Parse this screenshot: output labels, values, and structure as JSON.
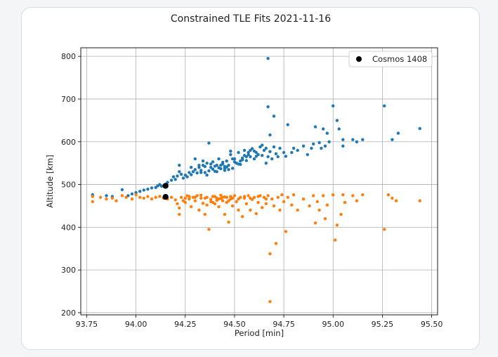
{
  "chart_data": {
    "type": "scatter",
    "title": "Constrained TLE Fits 2021-11-16",
    "xlabel": "Period [min]",
    "ylabel": "Altitude [km]",
    "xlim": [
      93.72,
      95.53
    ],
    "ylim": [
      195,
      820
    ],
    "xticks": [
      "93.75",
      "94.00",
      "94.25",
      "94.50",
      "94.75",
      "95.00",
      "95.25",
      "95.50"
    ],
    "yticks": [
      "200",
      "300",
      "400",
      "500",
      "600",
      "700",
      "800"
    ],
    "grid": true,
    "legend_placement": "top-right",
    "legend": [
      {
        "label": "Cosmos 1408",
        "color": "#000000"
      }
    ],
    "series": [
      {
        "color": "#1f77b4",
        "points": [
          [
            93.78,
            476
          ],
          [
            93.85,
            474
          ],
          [
            93.88,
            472
          ],
          [
            93.93,
            488
          ],
          [
            93.96,
            474
          ],
          [
            93.98,
            478
          ],
          [
            94.0,
            481
          ],
          [
            94.02,
            484
          ],
          [
            94.04,
            487
          ],
          [
            94.06,
            489
          ],
          [
            94.08,
            492
          ],
          [
            94.1,
            493
          ],
          [
            94.11,
            497
          ],
          [
            94.12,
            500
          ],
          [
            94.13,
            496
          ],
          [
            94.15,
            498
          ],
          [
            94.16,
            505
          ],
          [
            94.18,
            510
          ],
          [
            94.19,
            518
          ],
          [
            94.2,
            512
          ],
          [
            94.21,
            520
          ],
          [
            94.22,
            530
          ],
          [
            94.22,
            545
          ],
          [
            94.23,
            524
          ],
          [
            94.24,
            515
          ],
          [
            94.25,
            522
          ],
          [
            94.26,
            518
          ],
          [
            94.27,
            528
          ],
          [
            94.28,
            523
          ],
          [
            94.29,
            530
          ],
          [
            94.3,
            535
          ],
          [
            94.31,
            527
          ],
          [
            94.32,
            540
          ],
          [
            94.33,
            533
          ],
          [
            94.34,
            545
          ],
          [
            94.35,
            528
          ],
          [
            94.36,
            550
          ],
          [
            94.37,
            532
          ],
          [
            94.37,
            597
          ],
          [
            94.38,
            540
          ],
          [
            94.39,
            553
          ],
          [
            94.4,
            531
          ],
          [
            94.41,
            545
          ],
          [
            94.42,
            560
          ],
          [
            94.43,
            537
          ],
          [
            94.44,
            548
          ],
          [
            94.45,
            542
          ],
          [
            94.45,
            533
          ],
          [
            94.46,
            555
          ],
          [
            94.47,
            545
          ],
          [
            94.48,
            570
          ],
          [
            94.49,
            538
          ],
          [
            94.5,
            560
          ],
          [
            94.51,
            550
          ],
          [
            94.52,
            575
          ],
          [
            94.53,
            547
          ],
          [
            94.54,
            562
          ],
          [
            94.55,
            580
          ],
          [
            94.56,
            556
          ],
          [
            94.57,
            570
          ],
          [
            94.58,
            565
          ],
          [
            94.59,
            584
          ],
          [
            94.6,
            560
          ],
          [
            94.61,
            575
          ],
          [
            94.63,
            588
          ],
          [
            94.64,
            568
          ],
          [
            94.65,
            580
          ],
          [
            94.66,
            550
          ],
          [
            94.67,
            565
          ],
          [
            94.68,
            577
          ],
          [
            94.69,
            560
          ],
          [
            94.7,
            588
          ],
          [
            94.71,
            572
          ],
          [
            94.72,
            565
          ],
          [
            94.73,
            585
          ],
          [
            94.75,
            575
          ],
          [
            94.76,
            566
          ],
          [
            94.77,
            640
          ],
          [
            94.79,
            575
          ],
          [
            94.8,
            585
          ],
          [
            94.82,
            580
          ],
          [
            94.85,
            590
          ],
          [
            94.87,
            570
          ],
          [
            94.89,
            585
          ],
          [
            94.9,
            595
          ],
          [
            94.91,
            635
          ],
          [
            94.93,
            598
          ],
          [
            94.94,
            585
          ],
          [
            94.95,
            630
          ],
          [
            94.96,
            590
          ],
          [
            94.97,
            620
          ],
          [
            94.98,
            600
          ],
          [
            95.0,
            684
          ],
          [
            95.02,
            650
          ],
          [
            95.03,
            630
          ],
          [
            95.05,
            590
          ],
          [
            95.05,
            605
          ],
          [
            95.1,
            605
          ],
          [
            95.12,
            600
          ],
          [
            95.15,
            605
          ],
          [
            95.26,
            684
          ],
          [
            95.3,
            605
          ],
          [
            95.33,
            620
          ],
          [
            95.44,
            631
          ],
          [
            94.67,
            795
          ],
          [
            94.67,
            682
          ],
          [
            94.7,
            660
          ],
          [
            94.68,
            616
          ],
          [
            94.3,
            560
          ],
          [
            94.32,
            545
          ],
          [
            94.35,
            542
          ],
          [
            94.38,
            548
          ],
          [
            94.4,
            543
          ],
          [
            94.42,
            539
          ],
          [
            94.44,
            552
          ],
          [
            94.46,
            541
          ],
          [
            94.47,
            535
          ],
          [
            94.49,
            560
          ],
          [
            94.5,
            553
          ],
          [
            94.52,
            548
          ],
          [
            94.54,
            558
          ],
          [
            94.56,
            565
          ],
          [
            94.58,
            580
          ],
          [
            94.6,
            578
          ],
          [
            94.62,
            570
          ],
          [
            94.64,
            592
          ],
          [
            94.66,
            585
          ],
          [
            94.48,
            578
          ],
          [
            94.53,
            555
          ],
          [
            94.55,
            568
          ],
          [
            94.28,
            540
          ],
          [
            94.33,
            528
          ],
          [
            94.36,
            522
          ],
          [
            94.41,
            530
          ],
          [
            94.43,
            545
          ],
          [
            94.45,
            538
          ],
          [
            94.34,
            555
          ],
          [
            94.39,
            536
          ],
          [
            94.57,
            575
          ],
          [
            94.61,
            566
          ]
        ]
      },
      {
        "color": "#ff7f0e",
        "points": [
          [
            93.78,
            472
          ],
          [
            93.78,
            460
          ],
          [
            93.82,
            470
          ],
          [
            93.85,
            466
          ],
          [
            93.88,
            468
          ],
          [
            93.9,
            462
          ],
          [
            93.93,
            474
          ],
          [
            93.95,
            470
          ],
          [
            93.98,
            466
          ],
          [
            94.0,
            476
          ],
          [
            94.02,
            470
          ],
          [
            94.04,
            468
          ],
          [
            94.06,
            472
          ],
          [
            94.08,
            466
          ],
          [
            94.1,
            470
          ],
          [
            94.12,
            472
          ],
          [
            94.14,
            468
          ],
          [
            94.16,
            466
          ],
          [
            94.18,
            470
          ],
          [
            94.2,
            464
          ],
          [
            94.21,
            455
          ],
          [
            94.22,
            445
          ],
          [
            94.22,
            430
          ],
          [
            94.23,
            470
          ],
          [
            94.24,
            462
          ],
          [
            94.25,
            458
          ],
          [
            94.26,
            474
          ],
          [
            94.27,
            466
          ],
          [
            94.28,
            448
          ],
          [
            94.29,
            470
          ],
          [
            94.3,
            462
          ],
          [
            94.31,
            474
          ],
          [
            94.32,
            440
          ],
          [
            94.33,
            468
          ],
          [
            94.34,
            456
          ],
          [
            94.35,
            430
          ],
          [
            94.36,
            470
          ],
          [
            94.37,
            395
          ],
          [
            94.38,
            465
          ],
          [
            94.39,
            472
          ],
          [
            94.4,
            455
          ],
          [
            94.41,
            468
          ],
          [
            94.42,
            448
          ],
          [
            94.43,
            475
          ],
          [
            94.44,
            462
          ],
          [
            94.45,
            430
          ],
          [
            94.46,
            470
          ],
          [
            94.47,
            412
          ],
          [
            94.48,
            466
          ],
          [
            94.49,
            450
          ],
          [
            94.5,
            474
          ],
          [
            94.51,
            460
          ],
          [
            94.52,
            440
          ],
          [
            94.53,
            470
          ],
          [
            94.54,
            425
          ],
          [
            94.55,
            468
          ],
          [
            94.56,
            455
          ],
          [
            94.57,
            474
          ],
          [
            94.58,
            440
          ],
          [
            94.59,
            465
          ],
          [
            94.6,
            470
          ],
          [
            94.61,
            432
          ],
          [
            94.62,
            458
          ],
          [
            94.63,
            474
          ],
          [
            94.64,
            446
          ],
          [
            94.65,
            470
          ],
          [
            94.66,
            455
          ],
          [
            94.67,
            474
          ],
          [
            94.68,
            338
          ],
          [
            94.69,
            466
          ],
          [
            94.7,
            450
          ],
          [
            94.71,
            362
          ],
          [
            94.72,
            470
          ],
          [
            94.73,
            440
          ],
          [
            94.74,
            476
          ],
          [
            94.75,
            460
          ],
          [
            94.76,
            390
          ],
          [
            94.77,
            470
          ],
          [
            94.79,
            452
          ],
          [
            94.8,
            476
          ],
          [
            94.82,
            440
          ],
          [
            94.85,
            466
          ],
          [
            94.88,
            450
          ],
          [
            94.9,
            474
          ],
          [
            94.91,
            410
          ],
          [
            94.92,
            460
          ],
          [
            94.93,
            440
          ],
          [
            94.95,
            474
          ],
          [
            94.96,
            420
          ],
          [
            94.97,
            452
          ],
          [
            95.0,
            476
          ],
          [
            95.01,
            370
          ],
          [
            95.02,
            405
          ],
          [
            95.04,
            430
          ],
          [
            95.05,
            476
          ],
          [
            95.06,
            458
          ],
          [
            95.1,
            474
          ],
          [
            95.12,
            462
          ],
          [
            95.15,
            476
          ],
          [
            95.26,
            395
          ],
          [
            95.28,
            476
          ],
          [
            95.3,
            468
          ],
          [
            95.32,
            462
          ],
          [
            95.44,
            462
          ],
          [
            94.68,
            226
          ],
          [
            94.3,
            470
          ],
          [
            94.35,
            468
          ],
          [
            94.38,
            460
          ],
          [
            94.4,
            472
          ],
          [
            94.42,
            466
          ],
          [
            94.44,
            470
          ],
          [
            94.46,
            458
          ],
          [
            94.48,
            472
          ],
          [
            94.36,
            452
          ],
          [
            94.41,
            463
          ],
          [
            94.43,
            467
          ],
          [
            94.45,
            471
          ],
          [
            94.47,
            462
          ],
          [
            94.49,
            468
          ],
          [
            94.25,
            468
          ],
          [
            94.27,
            472
          ],
          [
            94.33,
            475
          ],
          [
            94.39,
            458
          ],
          [
            94.52,
            466
          ],
          [
            94.55,
            472
          ],
          [
            94.58,
            468
          ],
          [
            94.62,
            472
          ],
          [
            94.66,
            466
          ]
        ]
      },
      {
        "name": "Cosmos 1408",
        "color": "#000000",
        "points": [
          [
            94.15,
            497
          ],
          [
            94.15,
            471
          ]
        ]
      }
    ]
  }
}
